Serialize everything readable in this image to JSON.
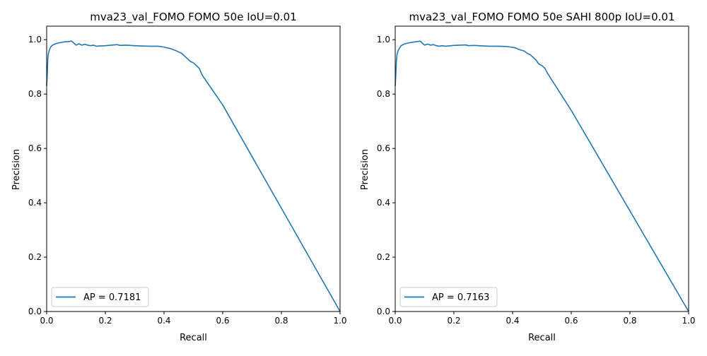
{
  "chart_data": [
    {
      "type": "line",
      "title": "mva23_val_FOMO FOMO 50e IoU=0.01",
      "xlabel": "Recall",
      "ylabel": "Precision",
      "xlim": [
        0.0,
        1.0
      ],
      "ylim": [
        0.0,
        1.05
      ],
      "xticks": [
        "0.0",
        "0.2",
        "0.4",
        "0.6",
        "0.8",
        "1.0"
      ],
      "yticks": [
        "0.0",
        "0.2",
        "0.4",
        "0.6",
        "0.8",
        "1.0"
      ],
      "grid": false,
      "legend": {
        "placement": "lower left",
        "entries": [
          "AP = 0.7181"
        ]
      },
      "series": [
        {
          "name": "AP = 0.7181",
          "color": "#1f77b4",
          "x": [
            0.0,
            0.002,
            0.004,
            0.006,
            0.01,
            0.015,
            0.02,
            0.03,
            0.04,
            0.06,
            0.08,
            0.085,
            0.09,
            0.095,
            0.1,
            0.11,
            0.12,
            0.13,
            0.14,
            0.15,
            0.16,
            0.17,
            0.18,
            0.2,
            0.22,
            0.24,
            0.25,
            0.27,
            0.3,
            0.32,
            0.35,
            0.38,
            0.4,
            0.41,
            0.42,
            0.44,
            0.45,
            0.46,
            0.47,
            0.48,
            0.49,
            0.5,
            0.51,
            0.52,
            0.53,
            0.6,
            0.7,
            0.8,
            0.9,
            1.0
          ],
          "y": [
            0.83,
            0.87,
            0.93,
            0.95,
            0.965,
            0.975,
            0.98,
            0.985,
            0.988,
            0.992,
            0.994,
            0.995,
            0.99,
            0.985,
            0.98,
            0.985,
            0.98,
            0.983,
            0.98,
            0.978,
            0.98,
            0.976,
            0.977,
            0.978,
            0.98,
            0.982,
            0.979,
            0.98,
            0.978,
            0.977,
            0.976,
            0.976,
            0.973,
            0.97,
            0.968,
            0.96,
            0.955,
            0.95,
            0.94,
            0.93,
            0.92,
            0.915,
            0.905,
            0.895,
            0.87,
            0.76,
            0.57,
            0.38,
            0.19,
            0.0
          ]
        }
      ]
    },
    {
      "type": "line",
      "title": "mva23_val_FOMO FOMO 50e SAHI 800p IoU=0.01",
      "xlabel": "Recall",
      "ylabel": "Precision",
      "xlim": [
        0.0,
        1.0
      ],
      "ylim": [
        0.0,
        1.05
      ],
      "xticks": [
        "0.0",
        "0.2",
        "0.4",
        "0.6",
        "0.8",
        "1.0"
      ],
      "yticks": [
        "0.0",
        "0.2",
        "0.4",
        "0.6",
        "0.8",
        "1.0"
      ],
      "grid": false,
      "legend": {
        "placement": "lower left",
        "entries": [
          "AP = 0.7163"
        ]
      },
      "series": [
        {
          "name": "AP = 0.7163",
          "color": "#1f77b4",
          "x": [
            0.0,
            0.002,
            0.004,
            0.006,
            0.01,
            0.015,
            0.02,
            0.03,
            0.04,
            0.06,
            0.08,
            0.085,
            0.09,
            0.095,
            0.1,
            0.11,
            0.12,
            0.13,
            0.14,
            0.15,
            0.16,
            0.17,
            0.18,
            0.2,
            0.22,
            0.24,
            0.25,
            0.27,
            0.3,
            0.32,
            0.35,
            0.38,
            0.4,
            0.41,
            0.42,
            0.44,
            0.45,
            0.46,
            0.47,
            0.48,
            0.49,
            0.5,
            0.51,
            0.52,
            0.6,
            0.7,
            0.8,
            0.9,
            1.0
          ],
          "y": [
            0.83,
            0.87,
            0.92,
            0.945,
            0.96,
            0.97,
            0.978,
            0.984,
            0.987,
            0.991,
            0.994,
            0.995,
            0.99,
            0.985,
            0.98,
            0.984,
            0.98,
            0.982,
            0.978,
            0.976,
            0.978,
            0.976,
            0.977,
            0.979,
            0.98,
            0.981,
            0.978,
            0.979,
            0.977,
            0.976,
            0.976,
            0.975,
            0.972,
            0.97,
            0.965,
            0.958,
            0.95,
            0.945,
            0.935,
            0.925,
            0.91,
            0.905,
            0.895,
            0.875,
            0.74,
            0.555,
            0.37,
            0.185,
            0.0
          ]
        }
      ]
    }
  ]
}
